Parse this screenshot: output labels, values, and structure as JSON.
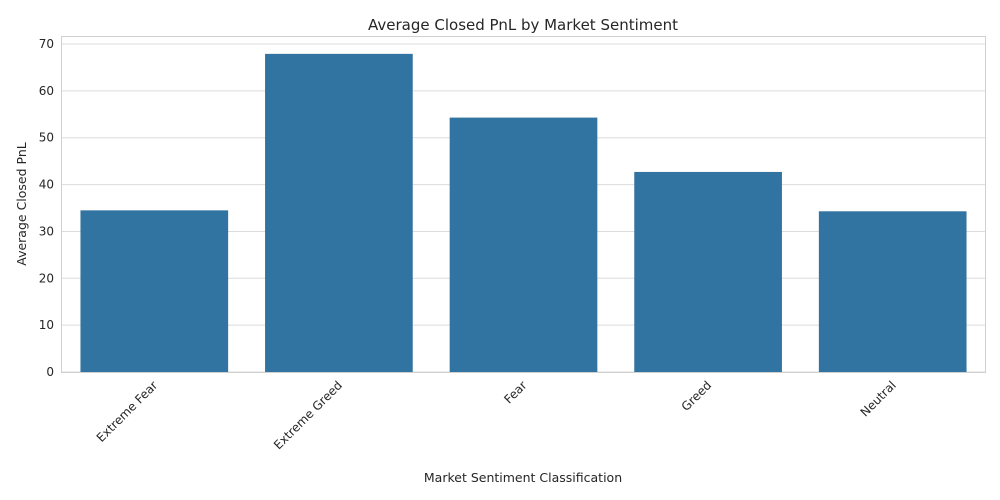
{
  "chart_data": {
    "type": "bar",
    "title": "Average Closed PnL by Market Sentiment",
    "xlabel": "Market Sentiment Classification",
    "ylabel": "Average Closed PnL",
    "categories": [
      "Extreme Fear",
      "Extreme Greed",
      "Fear",
      "Greed",
      "Neutral"
    ],
    "values": [
      34.5,
      67.9,
      54.3,
      42.7,
      34.3
    ],
    "ylim": [
      0,
      71.5
    ],
    "yticks": [
      0,
      10,
      20,
      30,
      40,
      50,
      60,
      70
    ],
    "grid": true,
    "bar_color": "#3274a1",
    "legend": "none"
  }
}
